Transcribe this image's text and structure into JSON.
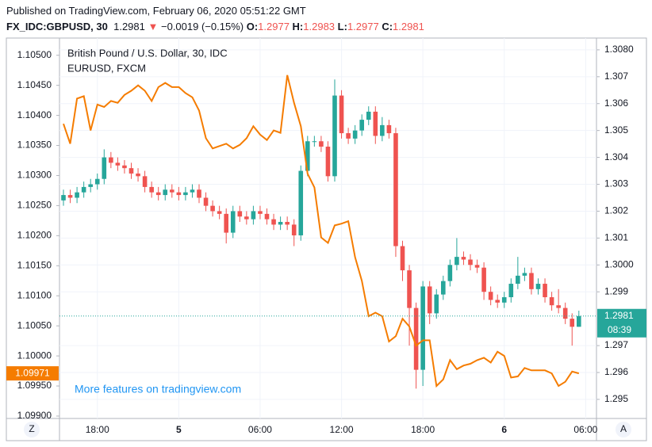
{
  "header": {
    "published": "Published on TradingView.com, February 06, 2020 05:51:22 GMT",
    "symbol": "FX_IDC:GBPUSD, 30",
    "change": "−0.0019 (−0.15%)",
    "labels": [
      "O:",
      "H:",
      "L:",
      "C:"
    ]
  },
  "chart_data": {
    "type": "candlestick",
    "title": "British Pound / U.S. Dollar, 30, IDC",
    "watermark": "More features on tradingview.com",
    "countdown": "08:39",
    "buttons": [
      "Z",
      "A"
    ],
    "up_color": "#26a69a",
    "down_color": "#ef5350",
    "axis": "y2",
    "grid": true,
    "categories": [
      null,
      null,
      null,
      null,
      null,
      "18:00",
      null,
      null,
      null,
      null,
      null,
      null,
      null,
      null,
      null,
      null,
      null,
      "5",
      null,
      null,
      null,
      null,
      null,
      null,
      null,
      null,
      null,
      null,
      null,
      "06:00",
      null,
      null,
      null,
      null,
      null,
      null,
      null,
      null,
      null,
      null,
      null,
      "12:00",
      null,
      null,
      null,
      null,
      null,
      null,
      null,
      null,
      null,
      null,
      null,
      "18:00",
      null,
      null,
      null,
      null,
      null,
      null,
      null,
      null,
      null,
      null,
      null,
      "6",
      null,
      null,
      null,
      null,
      null,
      null,
      null,
      null,
      null,
      null,
      null,
      "06:00"
    ],
    "open": [
      1.3024,
      1.3026,
      1.3025,
      1.3027,
      1.3029,
      1.303,
      1.3032,
      1.304,
      1.3038,
      1.3037,
      1.3036,
      1.3034,
      1.3033,
      1.3029,
      1.3027,
      1.3026,
      1.3028,
      1.3027,
      1.3026,
      1.3027,
      1.3028,
      1.3025,
      1.3022,
      1.302,
      1.3019,
      1.3012,
      1.302,
      1.3018,
      1.3017,
      1.302,
      1.3019,
      1.3017,
      1.3015,
      1.3016,
      1.3015,
      1.3011,
      1.3035,
      1.3046,
      1.3046,
      1.3044,
      1.3033,
      1.3063,
      1.3049,
      1.3047,
      1.305,
      1.3054,
      1.3057,
      1.3048,
      1.3052,
      1.3049,
      1.3007,
      1.2998,
      1.2984,
      1.2961,
      1.2992,
      1.2982,
      1.2989,
      1.2994,
      1.3,
      1.3003,
      1.3002,
      1.3,
      1.2999,
      1.299,
      1.2987,
      1.2986,
      1.2988,
      1.2993,
      1.2996,
      1.2997,
      1.2991,
      1.2993,
      1.2988,
      1.2985,
      1.2984,
      1.298,
      1.2977,
      null
    ],
    "high": [
      1.3028,
      1.3028,
      1.3029,
      1.3031,
      1.3032,
      1.3034,
      1.3043,
      1.3042,
      1.304,
      1.3039,
      1.3038,
      1.3036,
      1.3035,
      1.3031,
      1.3029,
      1.303,
      1.303,
      1.3029,
      1.3029,
      1.303,
      1.303,
      1.3027,
      1.3024,
      1.3022,
      1.3021,
      1.3022,
      1.3022,
      1.302,
      1.3022,
      1.3022,
      1.3021,
      1.3019,
      1.3018,
      1.3018,
      1.3017,
      1.3037,
      1.3048,
      1.3048,
      1.3048,
      1.3046,
      1.3069,
      1.3065,
      1.3051,
      1.3052,
      1.3056,
      1.3059,
      1.3059,
      1.3055,
      1.3054,
      1.3051,
      1.3009,
      1.3,
      1.2986,
      1.2994,
      1.2994,
      1.2991,
      1.2996,
      1.3002,
      1.301,
      1.3005,
      1.3004,
      1.3002,
      1.3001,
      1.2992,
      1.2989,
      1.299,
      1.2995,
      1.3003,
      1.2999,
      1.2999,
      1.2995,
      1.2995,
      1.299,
      1.2991,
      1.2986,
      1.2982,
      1.2983,
      null
    ],
    "low": [
      1.3022,
      1.3023,
      1.3023,
      1.3025,
      1.3027,
      1.3028,
      1.303,
      1.3036,
      1.3035,
      1.3034,
      1.3032,
      1.3031,
      1.3027,
      1.3025,
      1.3024,
      1.3024,
      1.3025,
      1.3024,
      1.3024,
      1.3025,
      1.3023,
      1.302,
      1.3018,
      1.3017,
      1.3008,
      1.301,
      1.3016,
      1.3015,
      1.3015,
      1.3017,
      1.3015,
      1.3013,
      1.3013,
      1.3013,
      1.3007,
      1.3009,
      1.3033,
      1.3044,
      1.3042,
      1.3031,
      1.3031,
      1.3047,
      1.3045,
      1.3045,
      1.3048,
      1.3052,
      1.3045,
      1.3046,
      1.3047,
      1.3003,
      1.2994,
      1.297,
      1.2954,
      1.2955,
      1.2978,
      1.298,
      1.2987,
      1.2992,
      1.2998,
      1.3,
      1.2998,
      1.2997,
      1.2987,
      1.2985,
      1.2984,
      1.2984,
      1.2986,
      1.2991,
      1.2994,
      1.2989,
      1.2989,
      1.2986,
      1.2983,
      1.2982,
      1.2978,
      1.297,
      1.2977,
      null
    ],
    "close": [
      1.3026,
      1.3025,
      1.3027,
      1.3029,
      1.303,
      1.3032,
      1.304,
      1.3038,
      1.3037,
      1.3036,
      1.3034,
      1.3033,
      1.3029,
      1.3027,
      1.3026,
      1.3028,
      1.3027,
      1.3026,
      1.3027,
      1.3028,
      1.3025,
      1.3022,
      1.302,
      1.3019,
      1.3012,
      1.302,
      1.3018,
      1.3017,
      1.302,
      1.3019,
      1.3017,
      1.3015,
      1.3016,
      1.3015,
      1.3011,
      1.3035,
      1.3046,
      1.3046,
      1.3044,
      1.3033,
      1.3063,
      1.3049,
      1.3047,
      1.305,
      1.3054,
      1.3057,
      1.3048,
      1.3052,
      1.3049,
      1.3007,
      1.2998,
      1.2984,
      1.2961,
      1.2992,
      1.2982,
      1.2989,
      1.2994,
      1.3,
      1.3003,
      1.3002,
      1.3,
      1.2999,
      1.299,
      1.2987,
      1.2986,
      1.2988,
      1.2993,
      1.2996,
      1.2997,
      1.2991,
      1.2993,
      1.2988,
      1.2985,
      1.2984,
      1.298,
      1.2977,
      1.2981,
      null
    ],
    "series": [
      {
        "name": "EURUSD, FXCM",
        "color": "#f57c00",
        "values": [
          1.10386,
          1.10353,
          1.10428,
          1.10432,
          1.10375,
          1.10418,
          1.10414,
          1.10424,
          1.10421,
          1.10434,
          1.10441,
          1.1045,
          1.10441,
          1.10424,
          1.10447,
          1.10454,
          1.10447,
          1.10447,
          1.10437,
          1.1043,
          1.10408,
          1.10362,
          1.10345,
          1.10349,
          1.10353,
          1.10345,
          1.10351,
          1.10362,
          1.10382,
          1.10368,
          1.10359,
          1.10375,
          1.10371,
          1.10467,
          1.10421,
          1.10382,
          1.10303,
          1.1028,
          1.10197,
          1.10188,
          1.10217,
          1.1022,
          1.10224,
          1.10164,
          1.10125,
          1.10066,
          1.10072,
          1.10066,
          1.10024,
          1.10033,
          1.10062,
          1.10049,
          1.10017,
          1.10026,
          1.10026,
          1.0995,
          1.09961,
          1.09993,
          1.09978,
          1.09984,
          1.09987,
          1.09993,
          1.09997,
          1.09989,
          1.10007,
          1.1,
          1.09964,
          1.09966,
          1.0998,
          1.09976,
          1.09976,
          1.09976,
          1.09971,
          1.0995,
          1.09957,
          1.09974,
          1.09971,
          null
        ]
      }
    ],
    "ylim": [
      1.09896,
      1.10526
    ],
    "yticks": [
      {
        "value": 1.105,
        "label": "1.10500"
      },
      {
        "value": 1.1045,
        "label": "1.10450"
      },
      {
        "value": 1.104,
        "label": "1.10400"
      },
      {
        "value": 1.1035,
        "label": "1.10350"
      },
      {
        "value": 1.103,
        "label": "1.10300"
      },
      {
        "value": 1.1025,
        "label": "1.10250"
      },
      {
        "value": 1.102,
        "label": "1.10200"
      },
      {
        "value": 1.1015,
        "label": "1.10150"
      },
      {
        "value": 1.101,
        "label": "1.10100"
      },
      {
        "value": 1.1005,
        "label": "1.10050"
      },
      {
        "value": 1.1,
        "label": "1.10000"
      },
      {
        "value": 1.0995,
        "label": "1.09950"
      },
      {
        "value": 1.099,
        "label": "1.09900"
      }
    ],
    "y2lim": [
      1.29429,
      1.30838
    ],
    "y2ticks": [
      {
        "value": 1.308,
        "label": "1.3080"
      },
      1.307,
      1.306,
      1.305,
      1.304,
      1.303,
      1.302,
      1.301,
      {
        "value": 1.3,
        "label": "1.3000"
      },
      1.299,
      1.297,
      1.296,
      1.295
    ]
  }
}
